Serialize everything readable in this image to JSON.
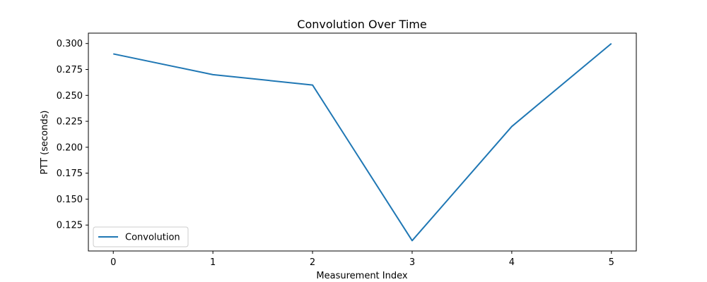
{
  "chart_data": {
    "type": "line",
    "title": "Convolution Over Time",
    "xlabel": "Measurement Index",
    "ylabel": "PTT (seconds)",
    "x": [
      0,
      1,
      2,
      3,
      4,
      5
    ],
    "xlim": [
      -0.25,
      5.25
    ],
    "ylim": [
      0.1,
      0.31
    ],
    "xticks": [
      0,
      1,
      2,
      3,
      4,
      5
    ],
    "xtick_labels": [
      "0",
      "1",
      "2",
      "3",
      "4",
      "5"
    ],
    "yticks": [
      0.125,
      0.15,
      0.175,
      0.2,
      0.225,
      0.25,
      0.275,
      0.3
    ],
    "ytick_labels": [
      "0.125",
      "0.150",
      "0.175",
      "0.200",
      "0.225",
      "0.250",
      "0.275",
      "0.300"
    ],
    "series": [
      {
        "name": "Convolution",
        "color": "#1f77b4",
        "values": [
          0.29,
          0.27,
          0.26,
          0.11,
          0.22,
          0.3
        ]
      }
    ],
    "legend": {
      "placement": "lower-left",
      "entries": [
        "Convolution"
      ]
    },
    "grid": false
  }
}
